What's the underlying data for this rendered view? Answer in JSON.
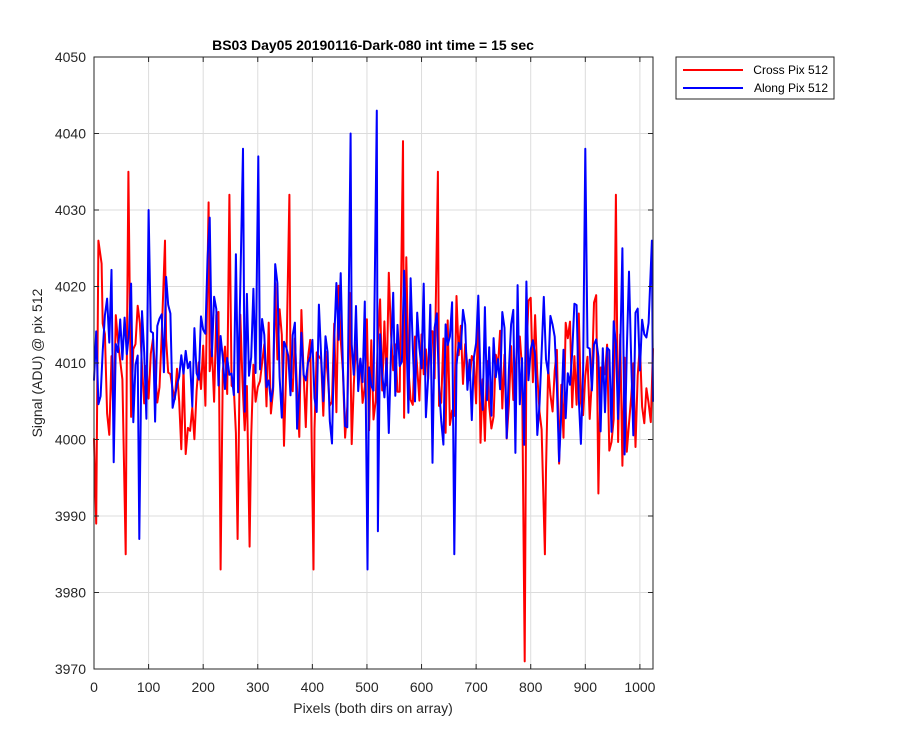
{
  "chart_data": {
    "type": "line",
    "title": "BS03 Day05 20190116-Dark-080 int time = 15 sec",
    "xlabel": "Pixels (both dirs on array)",
    "ylabel": "Signal (ADU) @ pix 512",
    "xlim": [
      0,
      1024
    ],
    "ylim": [
      3970,
      4050
    ],
    "xticks": [
      0,
      100,
      200,
      300,
      400,
      500,
      600,
      700,
      800,
      900,
      1000
    ],
    "yticks": [
      3970,
      3980,
      3990,
      4000,
      4010,
      4020,
      4030,
      4040,
      4050
    ],
    "grid": true,
    "legend_position": "outside-top-right",
    "colors": {
      "Cross Pix 512": "#ff0000",
      "Along Pix 512": "#0000ff",
      "grid": "#dcdcdc",
      "axes": "#262626"
    },
    "series": [
      {
        "name": "Cross Pix 512",
        "color": "#ff0000",
        "sampling": "approximate envelope: ~1 sample every 4 pixels, notable spikes read from plot",
        "mean": 4008,
        "noise_range": [
          3985,
          4035
        ],
        "highlights": [
          {
            "x": 4,
            "y": 3989
          },
          {
            "x": 8,
            "y": 4026
          },
          {
            "x": 14,
            "y": 4023
          },
          {
            "x": 58,
            "y": 3985
          },
          {
            "x": 63,
            "y": 4035
          },
          {
            "x": 130,
            "y": 4026
          },
          {
            "x": 210,
            "y": 4031
          },
          {
            "x": 232,
            "y": 3983
          },
          {
            "x": 248,
            "y": 4032
          },
          {
            "x": 263,
            "y": 3987
          },
          {
            "x": 285,
            "y": 3986
          },
          {
            "x": 358,
            "y": 4032
          },
          {
            "x": 402,
            "y": 3983
          },
          {
            "x": 566,
            "y": 4039
          },
          {
            "x": 630,
            "y": 4035
          },
          {
            "x": 789,
            "y": 3971
          },
          {
            "x": 826,
            "y": 3985
          },
          {
            "x": 956,
            "y": 4032
          }
        ]
      },
      {
        "name": "Along Pix 512",
        "color": "#0000ff",
        "sampling": "approximate envelope: ~1 sample every 4 pixels, notable spikes read from plot",
        "mean": 4010,
        "noise_range": [
          3985,
          4043
        ],
        "highlights": [
          {
            "x": 83,
            "y": 3987
          },
          {
            "x": 100,
            "y": 4030
          },
          {
            "x": 212,
            "y": 4029
          },
          {
            "x": 273,
            "y": 4038
          },
          {
            "x": 301,
            "y": 4037
          },
          {
            "x": 470,
            "y": 4040
          },
          {
            "x": 501,
            "y": 3983
          },
          {
            "x": 518,
            "y": 4043
          },
          {
            "x": 520,
            "y": 3988
          },
          {
            "x": 660,
            "y": 3985
          },
          {
            "x": 900,
            "y": 4038
          },
          {
            "x": 1022,
            "y": 4026
          }
        ]
      }
    ]
  }
}
